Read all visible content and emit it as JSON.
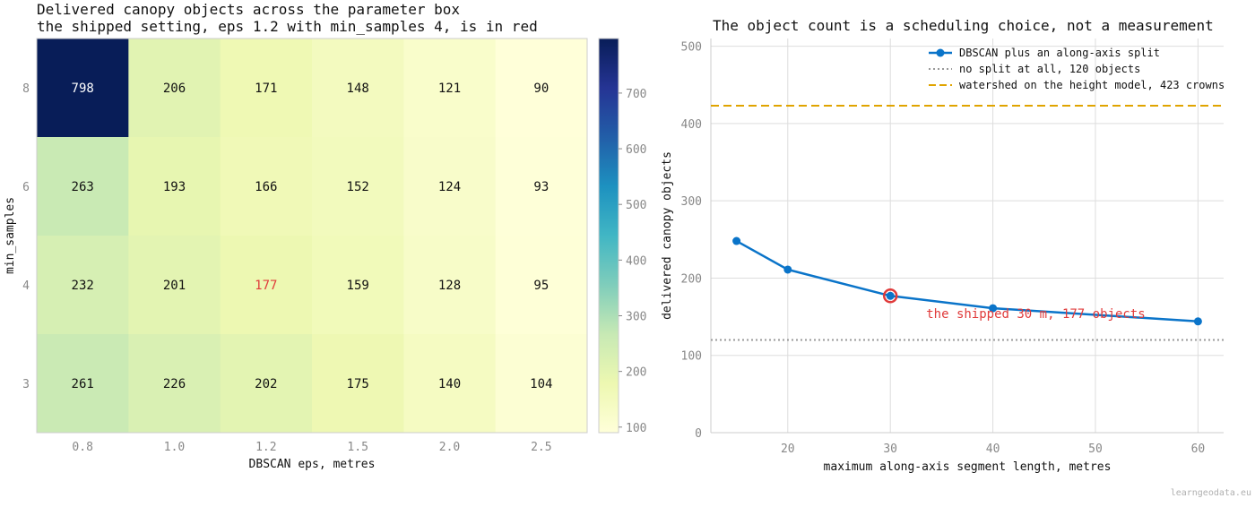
{
  "colors": {
    "highlight": "#e03b3b",
    "line": "#0a74c9",
    "dotted": "#999999",
    "watershed": "#e0a400",
    "grid": "#dddddd",
    "colormap": [
      "#ffffd9",
      "#edf8b1",
      "#c7e9b4",
      "#7fcdbb",
      "#41b6c4",
      "#1d91c0",
      "#225ea8",
      "#253494",
      "#081d58"
    ]
  },
  "chart_data": [
    {
      "type": "heatmap",
      "title": "Delivered canopy objects across the parameter box",
      "subtitle": "the shipped setting, eps 1.2 with min_samples 4, is in red",
      "xlabel": "DBSCAN eps, metres",
      "ylabel": "min_samples",
      "x_categories": [
        "0.8",
        "1.0",
        "1.2",
        "1.5",
        "2.0",
        "2.5"
      ],
      "y_categories": [
        "8",
        "6",
        "4",
        "3"
      ],
      "values": [
        [
          798,
          206,
          171,
          148,
          121,
          90
        ],
        [
          263,
          193,
          166,
          152,
          124,
          93
        ],
        [
          232,
          201,
          177,
          159,
          128,
          95
        ],
        [
          261,
          226,
          202,
          175,
          140,
          104
        ]
      ],
      "highlight": {
        "row": 2,
        "col": 2
      },
      "colorbar": {
        "min": 90,
        "max": 798,
        "ticks": [
          100,
          200,
          300,
          400,
          500,
          600,
          700
        ],
        "tick_labels": [
          "100",
          "200",
          "300",
          "400",
          "500",
          "600",
          "700"
        ]
      }
    },
    {
      "type": "line",
      "title": "The object count is a scheduling choice, not a measurement",
      "xlabel": "maximum along-axis segment length, metres",
      "ylabel": "delivered canopy objects",
      "xlim": [
        12.5,
        62.5
      ],
      "ylim": [
        0,
        510
      ],
      "x_ticks": [
        20,
        30,
        40,
        50,
        60
      ],
      "x_tick_labels": [
        "20",
        "30",
        "40",
        "50",
        "60"
      ],
      "y_ticks": [
        0,
        100,
        200,
        300,
        400,
        500
      ],
      "y_tick_labels": [
        "0",
        "100",
        "200",
        "300",
        "400",
        "500"
      ],
      "grid": true,
      "legend_position": "top-right",
      "series": [
        {
          "name": "DBSCAN plus an along-axis split",
          "x": [
            15,
            20,
            30,
            40,
            60
          ],
          "y": [
            248,
            211,
            177,
            161,
            144
          ]
        }
      ],
      "reference_lines": [
        {
          "name": "no split at all, 120 objects",
          "y": 120,
          "style": "dotted"
        },
        {
          "name": "watershed on the height model, 423 crowns",
          "y": 423,
          "style": "dashed"
        }
      ],
      "highlight_point": {
        "x": 30,
        "y": 177
      },
      "annotation": {
        "text": "the shipped 30 m, 177 objects",
        "x": 33.5,
        "y": 154
      }
    }
  ],
  "watermark": "learngeodata.eu"
}
